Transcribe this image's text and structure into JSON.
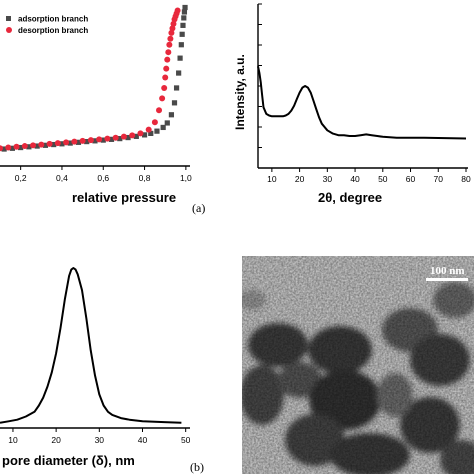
{
  "panel_labels": [
    "(a)",
    "(b)"
  ],
  "tem_image": {
    "scale_bar_label": "100 nm"
  },
  "chart_data": [
    {
      "type": "scatter",
      "xlabel": "relative pressure",
      "xlim": [
        0.1,
        1.02
      ],
      "ylim": [
        0,
        1
      ],
      "legend": "top-right",
      "xticks": [
        "0,2",
        "0,4",
        "0,6",
        "0,8",
        "1,0"
      ],
      "xtick_values": [
        0.2,
        0.4,
        0.6,
        0.8,
        1.0
      ],
      "series": [
        {
          "name": "adsorption branch",
          "marker": "square",
          "color": "#4a4a4a",
          "x": [
            0.12,
            0.16,
            0.2,
            0.24,
            0.28,
            0.32,
            0.36,
            0.4,
            0.44,
            0.48,
            0.52,
            0.56,
            0.6,
            0.64,
            0.68,
            0.72,
            0.76,
            0.8,
            0.83,
            0.86,
            0.89,
            0.91,
            0.93,
            0.945,
            0.955,
            0.965,
            0.972,
            0.978,
            0.982,
            0.986,
            0.99,
            0.993,
            0.996
          ],
          "y": [
            0.04,
            0.045,
            0.05,
            0.055,
            0.06,
            0.065,
            0.07,
            0.075,
            0.08,
            0.085,
            0.09,
            0.095,
            0.1,
            0.105,
            0.11,
            0.117,
            0.125,
            0.135,
            0.145,
            0.16,
            0.185,
            0.215,
            0.27,
            0.35,
            0.45,
            0.55,
            0.65,
            0.74,
            0.81,
            0.87,
            0.92,
            0.96,
            0.99
          ]
        },
        {
          "name": "desorption branch",
          "marker": "circle",
          "color": "#e8283c",
          "x": [
            0.1,
            0.14,
            0.18,
            0.22,
            0.26,
            0.3,
            0.34,
            0.38,
            0.42,
            0.46,
            0.5,
            0.54,
            0.58,
            0.62,
            0.66,
            0.7,
            0.74,
            0.78,
            0.82,
            0.85,
            0.87,
            0.885,
            0.895,
            0.9,
            0.905,
            0.91,
            0.915,
            0.92,
            0.925,
            0.93,
            0.935,
            0.94,
            0.945,
            0.95,
            0.955,
            0.96
          ],
          "y": [
            0.045,
            0.05,
            0.055,
            0.06,
            0.065,
            0.07,
            0.075,
            0.08,
            0.085,
            0.09,
            0.095,
            0.1,
            0.105,
            0.11,
            0.116,
            0.123,
            0.132,
            0.145,
            0.17,
            0.22,
            0.3,
            0.38,
            0.45,
            0.52,
            0.58,
            0.64,
            0.69,
            0.74,
            0.78,
            0.82,
            0.85,
            0.88,
            0.91,
            0.93,
            0.95,
            0.97
          ]
        }
      ]
    },
    {
      "type": "line",
      "xlabel": "2θ, degree",
      "ylabel": "Intensity, a.u.",
      "xlim": [
        5,
        80
      ],
      "ylim": [
        0,
        1
      ],
      "xticks": [
        10,
        20,
        30,
        40,
        50,
        60,
        70,
        80
      ],
      "series": [
        {
          "x": [
            5,
            5.5,
            6,
            6.5,
            7,
            8,
            9,
            10,
            11,
            12,
            13,
            14,
            15,
            16,
            17,
            18,
            19,
            20,
            21,
            22,
            23,
            24,
            25,
            26,
            27,
            28,
            30,
            32,
            34,
            36,
            38,
            40,
            42,
            44,
            46,
            48,
            50,
            55,
            60,
            65,
            70,
            75,
            80
          ],
          "y": [
            0.62,
            0.58,
            0.52,
            0.44,
            0.37,
            0.33,
            0.32,
            0.315,
            0.315,
            0.315,
            0.315,
            0.315,
            0.32,
            0.33,
            0.35,
            0.38,
            0.42,
            0.46,
            0.49,
            0.5,
            0.49,
            0.46,
            0.41,
            0.36,
            0.31,
            0.27,
            0.23,
            0.21,
            0.2,
            0.2,
            0.195,
            0.195,
            0.2,
            0.205,
            0.2,
            0.195,
            0.19,
            0.185,
            0.185,
            0.185,
            0.183,
            0.182,
            0.18
          ]
        }
      ]
    },
    {
      "type": "line",
      "xlabel": "pore diameter (δ), nm",
      "xlim": [
        7,
        51
      ],
      "ylim": [
        0,
        1
      ],
      "xticks": [
        10,
        20,
        30,
        40,
        50
      ],
      "series": [
        {
          "x": [
            7,
            9,
            11,
            13,
            15,
            16,
            17,
            18,
            19,
            20,
            21,
            22,
            23,
            23.5,
            24,
            24.5,
            25,
            26,
            27,
            28,
            29,
            30,
            31,
            32,
            33,
            35,
            37,
            40,
            45,
            49
          ],
          "y": [
            0.02,
            0.03,
            0.04,
            0.06,
            0.09,
            0.13,
            0.18,
            0.25,
            0.34,
            0.46,
            0.62,
            0.8,
            0.95,
            0.99,
            1.0,
            0.99,
            0.96,
            0.86,
            0.68,
            0.48,
            0.32,
            0.2,
            0.13,
            0.09,
            0.07,
            0.05,
            0.04,
            0.03,
            0.025,
            0.02
          ]
        }
      ]
    }
  ]
}
